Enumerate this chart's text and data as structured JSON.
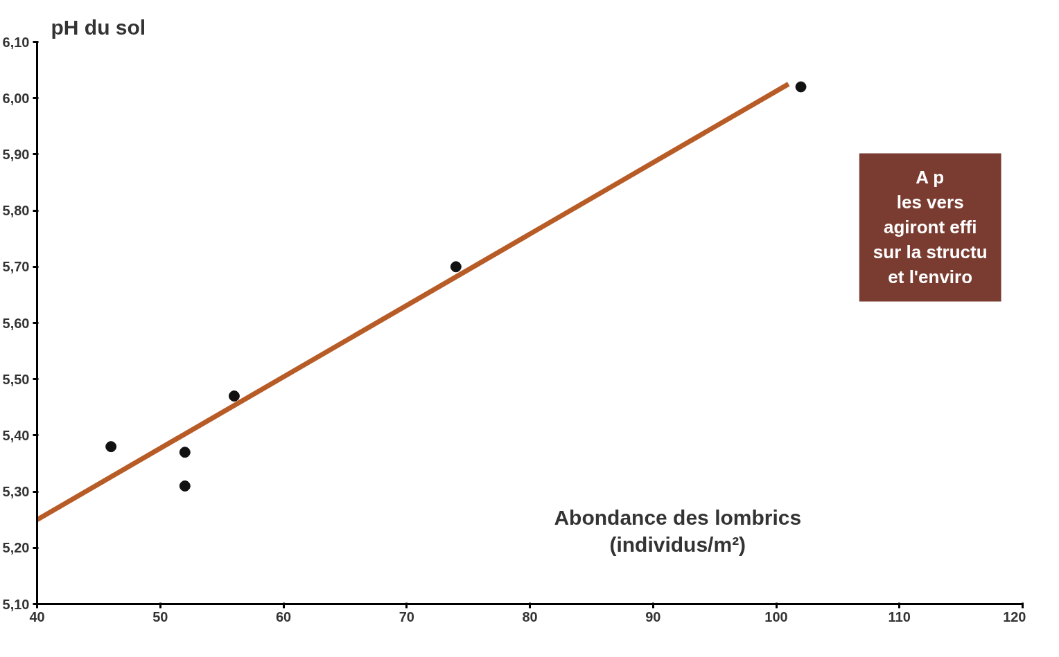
{
  "chart_data": {
    "type": "scatter",
    "xlabel": "Abondance des lombrics\n(individus/m²)",
    "ylabel": "pH du sol",
    "xlim": [
      40,
      120
    ],
    "ylim": [
      5.1,
      6.1
    ],
    "xticks": [
      40,
      50,
      60,
      70,
      80,
      90,
      100,
      110,
      120
    ],
    "yticks": [
      {
        "value": 5.1,
        "label": "5,10"
      },
      {
        "value": 5.2,
        "label": "5,20"
      },
      {
        "value": 5.3,
        "label": "5,30"
      },
      {
        "value": 5.4,
        "label": "5,40"
      },
      {
        "value": 5.5,
        "label": "5,50"
      },
      {
        "value": 5.6,
        "label": "5,60"
      },
      {
        "value": 5.7,
        "label": "5,70"
      },
      {
        "value": 5.8,
        "label": "5,80"
      },
      {
        "value": 5.9,
        "label": "5,90"
      },
      {
        "value": 6.0,
        "label": "6,00"
      },
      {
        "value": 6.1,
        "label": "6,10"
      }
    ],
    "grid": false,
    "annotations": [
      "A p\nles vers\nagiront effi\nsur la structu\net l'enviro"
    ],
    "series": [
      {
        "marker": "circle",
        "color": "#111111",
        "x": [
          46,
          52,
          52,
          56,
          74,
          102
        ],
        "values": [
          5.38,
          5.37,
          5.31,
          5.47,
          5.7,
          6.02
        ]
      },
      {
        "type": "line",
        "marker": "none",
        "color": "#b85c27",
        "x": [
          40,
          101
        ],
        "values": [
          5.25,
          6.025
        ]
      }
    ]
  }
}
